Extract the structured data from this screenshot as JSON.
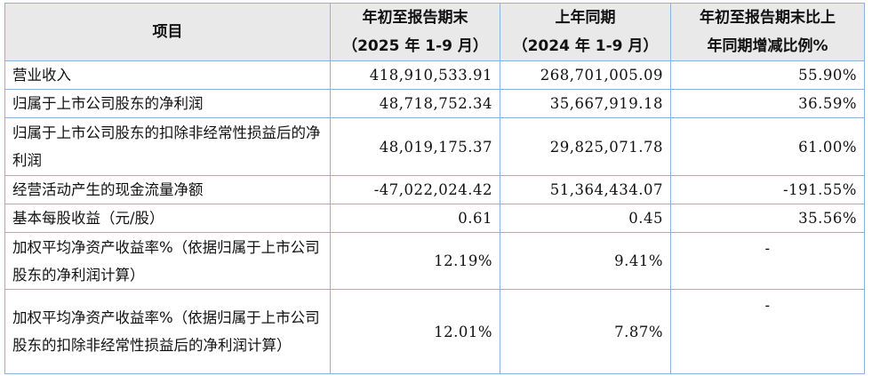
{
  "table": {
    "headers": [
      {
        "line1": "项目",
        "line2": ""
      },
      {
        "line1": "年初至报告期末",
        "line2": "（2025 年 1-9 月）"
      },
      {
        "line1": "上年同期",
        "line2": "（2024 年 1-9 月）"
      },
      {
        "line1": "年初至报告期末比上",
        "line2": "年同期增减比例%"
      }
    ],
    "rows": [
      {
        "label": "营业收入",
        "current": "418,910,533.91",
        "prior": "268,701,005.09",
        "change": "55.90%"
      },
      {
        "label": "归属于上市公司股东的净利润",
        "current": "48,718,752.34",
        "prior": "35,667,919.18",
        "change": "36.59%"
      },
      {
        "label": "归属于上市公司股东的扣除非经常性损益后的净利润",
        "current": "48,019,175.37",
        "prior": "29,825,071.78",
        "change": "61.00%"
      },
      {
        "label": "经营活动产生的现金流量净额",
        "current": "-47,022,024.42",
        "prior": "51,364,434.07",
        "change": "-191.55%"
      },
      {
        "label": "基本每股收益（元/股）",
        "current": "0.61",
        "prior": "0.45",
        "change": "35.56%"
      },
      {
        "label": "加权平均净资产收益率%（依据归属于上市公司股东的净利润计算）",
        "current": "12.19%",
        "prior": "9.41%",
        "change": "-"
      },
      {
        "label": "加权平均净资产收益率%（依据归属于上市公司股东的扣除非经常性损益后的净利润计算）",
        "current": "12.01%",
        "prior": "7.87%",
        "change": "-"
      }
    ]
  }
}
